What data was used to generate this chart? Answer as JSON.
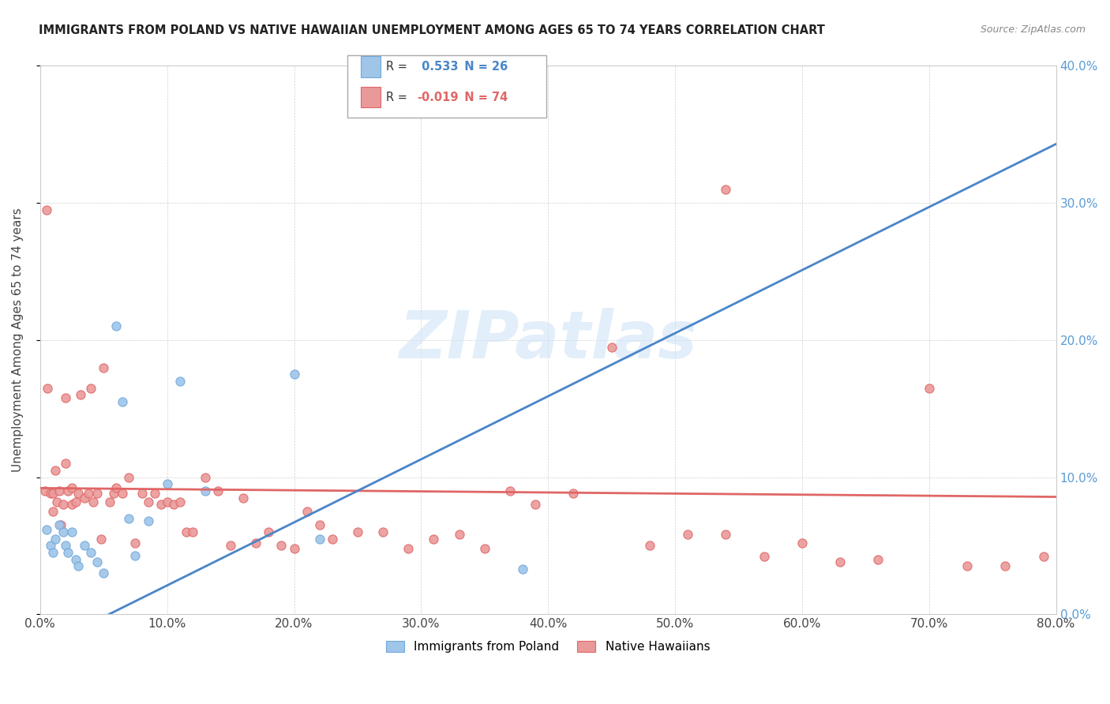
{
  "title": "IMMIGRANTS FROM POLAND VS NATIVE HAWAIIAN UNEMPLOYMENT AMONG AGES 65 TO 74 YEARS CORRELATION CHART",
  "source": "Source: ZipAtlas.com",
  "ylabel": "Unemployment Among Ages 65 to 74 years",
  "xlim": [
    0,
    0.8
  ],
  "ylim": [
    0,
    0.4
  ],
  "xticks": [
    0.0,
    0.1,
    0.2,
    0.3,
    0.4,
    0.5,
    0.6,
    0.7,
    0.8
  ],
  "yticks": [
    0.0,
    0.1,
    0.2,
    0.3,
    0.4
  ],
  "blue_R": 0.533,
  "blue_N": 26,
  "pink_R": -0.019,
  "pink_N": 74,
  "blue_color": "#9fc5e8",
  "pink_color": "#ea9999",
  "blue_edge_color": "#6fa8dc",
  "pink_edge_color": "#e06666",
  "blue_line_color": "#4a86c8",
  "pink_line_color": "#e06666",
  "dashed_line_color": "#9fc5e8",
  "background_color": "#ffffff",
  "watermark_color": "#d0e4f7",
  "blue_line_slope": 0.46,
  "blue_line_intercept": -0.025,
  "pink_line_slope": -0.008,
  "pink_line_intercept": 0.092,
  "blue_scatter_x": [
    0.005,
    0.008,
    0.01,
    0.012,
    0.015,
    0.018,
    0.02,
    0.022,
    0.025,
    0.028,
    0.03,
    0.035,
    0.04,
    0.045,
    0.05,
    0.06,
    0.065,
    0.07,
    0.075,
    0.085,
    0.1,
    0.11,
    0.13,
    0.2,
    0.22,
    0.38
  ],
  "blue_scatter_y": [
    0.062,
    0.05,
    0.045,
    0.055,
    0.065,
    0.06,
    0.05,
    0.045,
    0.06,
    0.04,
    0.035,
    0.05,
    0.045,
    0.038,
    0.03,
    0.21,
    0.155,
    0.07,
    0.043,
    0.068,
    0.095,
    0.17,
    0.09,
    0.175,
    0.055,
    0.033
  ],
  "pink_scatter_x": [
    0.004,
    0.005,
    0.006,
    0.008,
    0.01,
    0.01,
    0.012,
    0.013,
    0.015,
    0.016,
    0.018,
    0.02,
    0.02,
    0.022,
    0.025,
    0.025,
    0.028,
    0.03,
    0.032,
    0.035,
    0.038,
    0.04,
    0.042,
    0.045,
    0.048,
    0.05,
    0.055,
    0.058,
    0.06,
    0.065,
    0.07,
    0.075,
    0.08,
    0.085,
    0.09,
    0.095,
    0.1,
    0.105,
    0.11,
    0.115,
    0.12,
    0.13,
    0.14,
    0.15,
    0.16,
    0.17,
    0.18,
    0.19,
    0.2,
    0.21,
    0.22,
    0.23,
    0.25,
    0.27,
    0.29,
    0.31,
    0.33,
    0.35,
    0.37,
    0.39,
    0.42,
    0.45,
    0.48,
    0.51,
    0.54,
    0.57,
    0.6,
    0.63,
    0.66,
    0.7,
    0.73,
    0.76,
    0.79,
    0.54
  ],
  "pink_scatter_y": [
    0.09,
    0.295,
    0.165,
    0.088,
    0.088,
    0.075,
    0.105,
    0.082,
    0.09,
    0.065,
    0.08,
    0.11,
    0.158,
    0.09,
    0.08,
    0.092,
    0.082,
    0.088,
    0.16,
    0.085,
    0.088,
    0.165,
    0.082,
    0.088,
    0.055,
    0.18,
    0.082,
    0.088,
    0.092,
    0.088,
    0.1,
    0.052,
    0.088,
    0.082,
    0.088,
    0.08,
    0.082,
    0.08,
    0.082,
    0.06,
    0.06,
    0.1,
    0.09,
    0.05,
    0.085,
    0.052,
    0.06,
    0.05,
    0.048,
    0.075,
    0.065,
    0.055,
    0.06,
    0.06,
    0.048,
    0.055,
    0.058,
    0.048,
    0.09,
    0.08,
    0.088,
    0.195,
    0.05,
    0.058,
    0.058,
    0.042,
    0.052,
    0.038,
    0.04,
    0.165,
    0.035,
    0.035,
    0.042,
    0.31
  ]
}
